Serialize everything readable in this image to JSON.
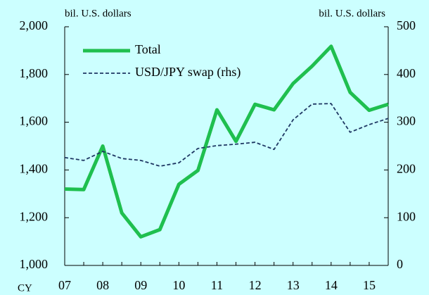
{
  "chart_data": {
    "type": "line",
    "left_axis_label": "bil. U.S. dollars",
    "right_axis_label": "bil. U.S. dollars",
    "x_axis_label": "CY",
    "categories": [
      "07",
      null,
      "08",
      null,
      "09",
      null,
      "10",
      null,
      "11",
      null,
      "12",
      null,
      "13",
      null,
      "14",
      null,
      "15",
      null
    ],
    "series": [
      {
        "name": "Total",
        "color": "#1fbf4f",
        "style": "solid",
        "values": [
          1320,
          1318,
          1500,
          1220,
          1120,
          1150,
          1340,
          1398,
          1652,
          1520,
          1675,
          1652,
          1762,
          1835,
          1918,
          1725,
          1650,
          1675
        ]
      },
      {
        "name": "USD/JPY swap (rhs)",
        "color": "#1f3864",
        "style": "dashed",
        "axis": "y2",
        "values": [
          226,
          220,
          239,
          224,
          220,
          208,
          215,
          245,
          251,
          254,
          258,
          243,
          305,
          338,
          339,
          279,
          295,
          308
        ]
      }
    ],
    "ylim": [
      1000,
      2000
    ],
    "yticks": [
      {
        "value": 1000,
        "label": "1,000"
      },
      {
        "value": 1200,
        "label": "1,200"
      },
      {
        "value": 1400,
        "label": "1,400"
      },
      {
        "value": 1600,
        "label": "1,600"
      },
      {
        "value": 1800,
        "label": "1,800"
      },
      {
        "value": 2000,
        "label": "2,000"
      }
    ],
    "y2lim": [
      0,
      500
    ],
    "y2ticks": [
      0,
      100,
      200,
      300,
      400,
      500
    ],
    "legend": "upper left"
  }
}
